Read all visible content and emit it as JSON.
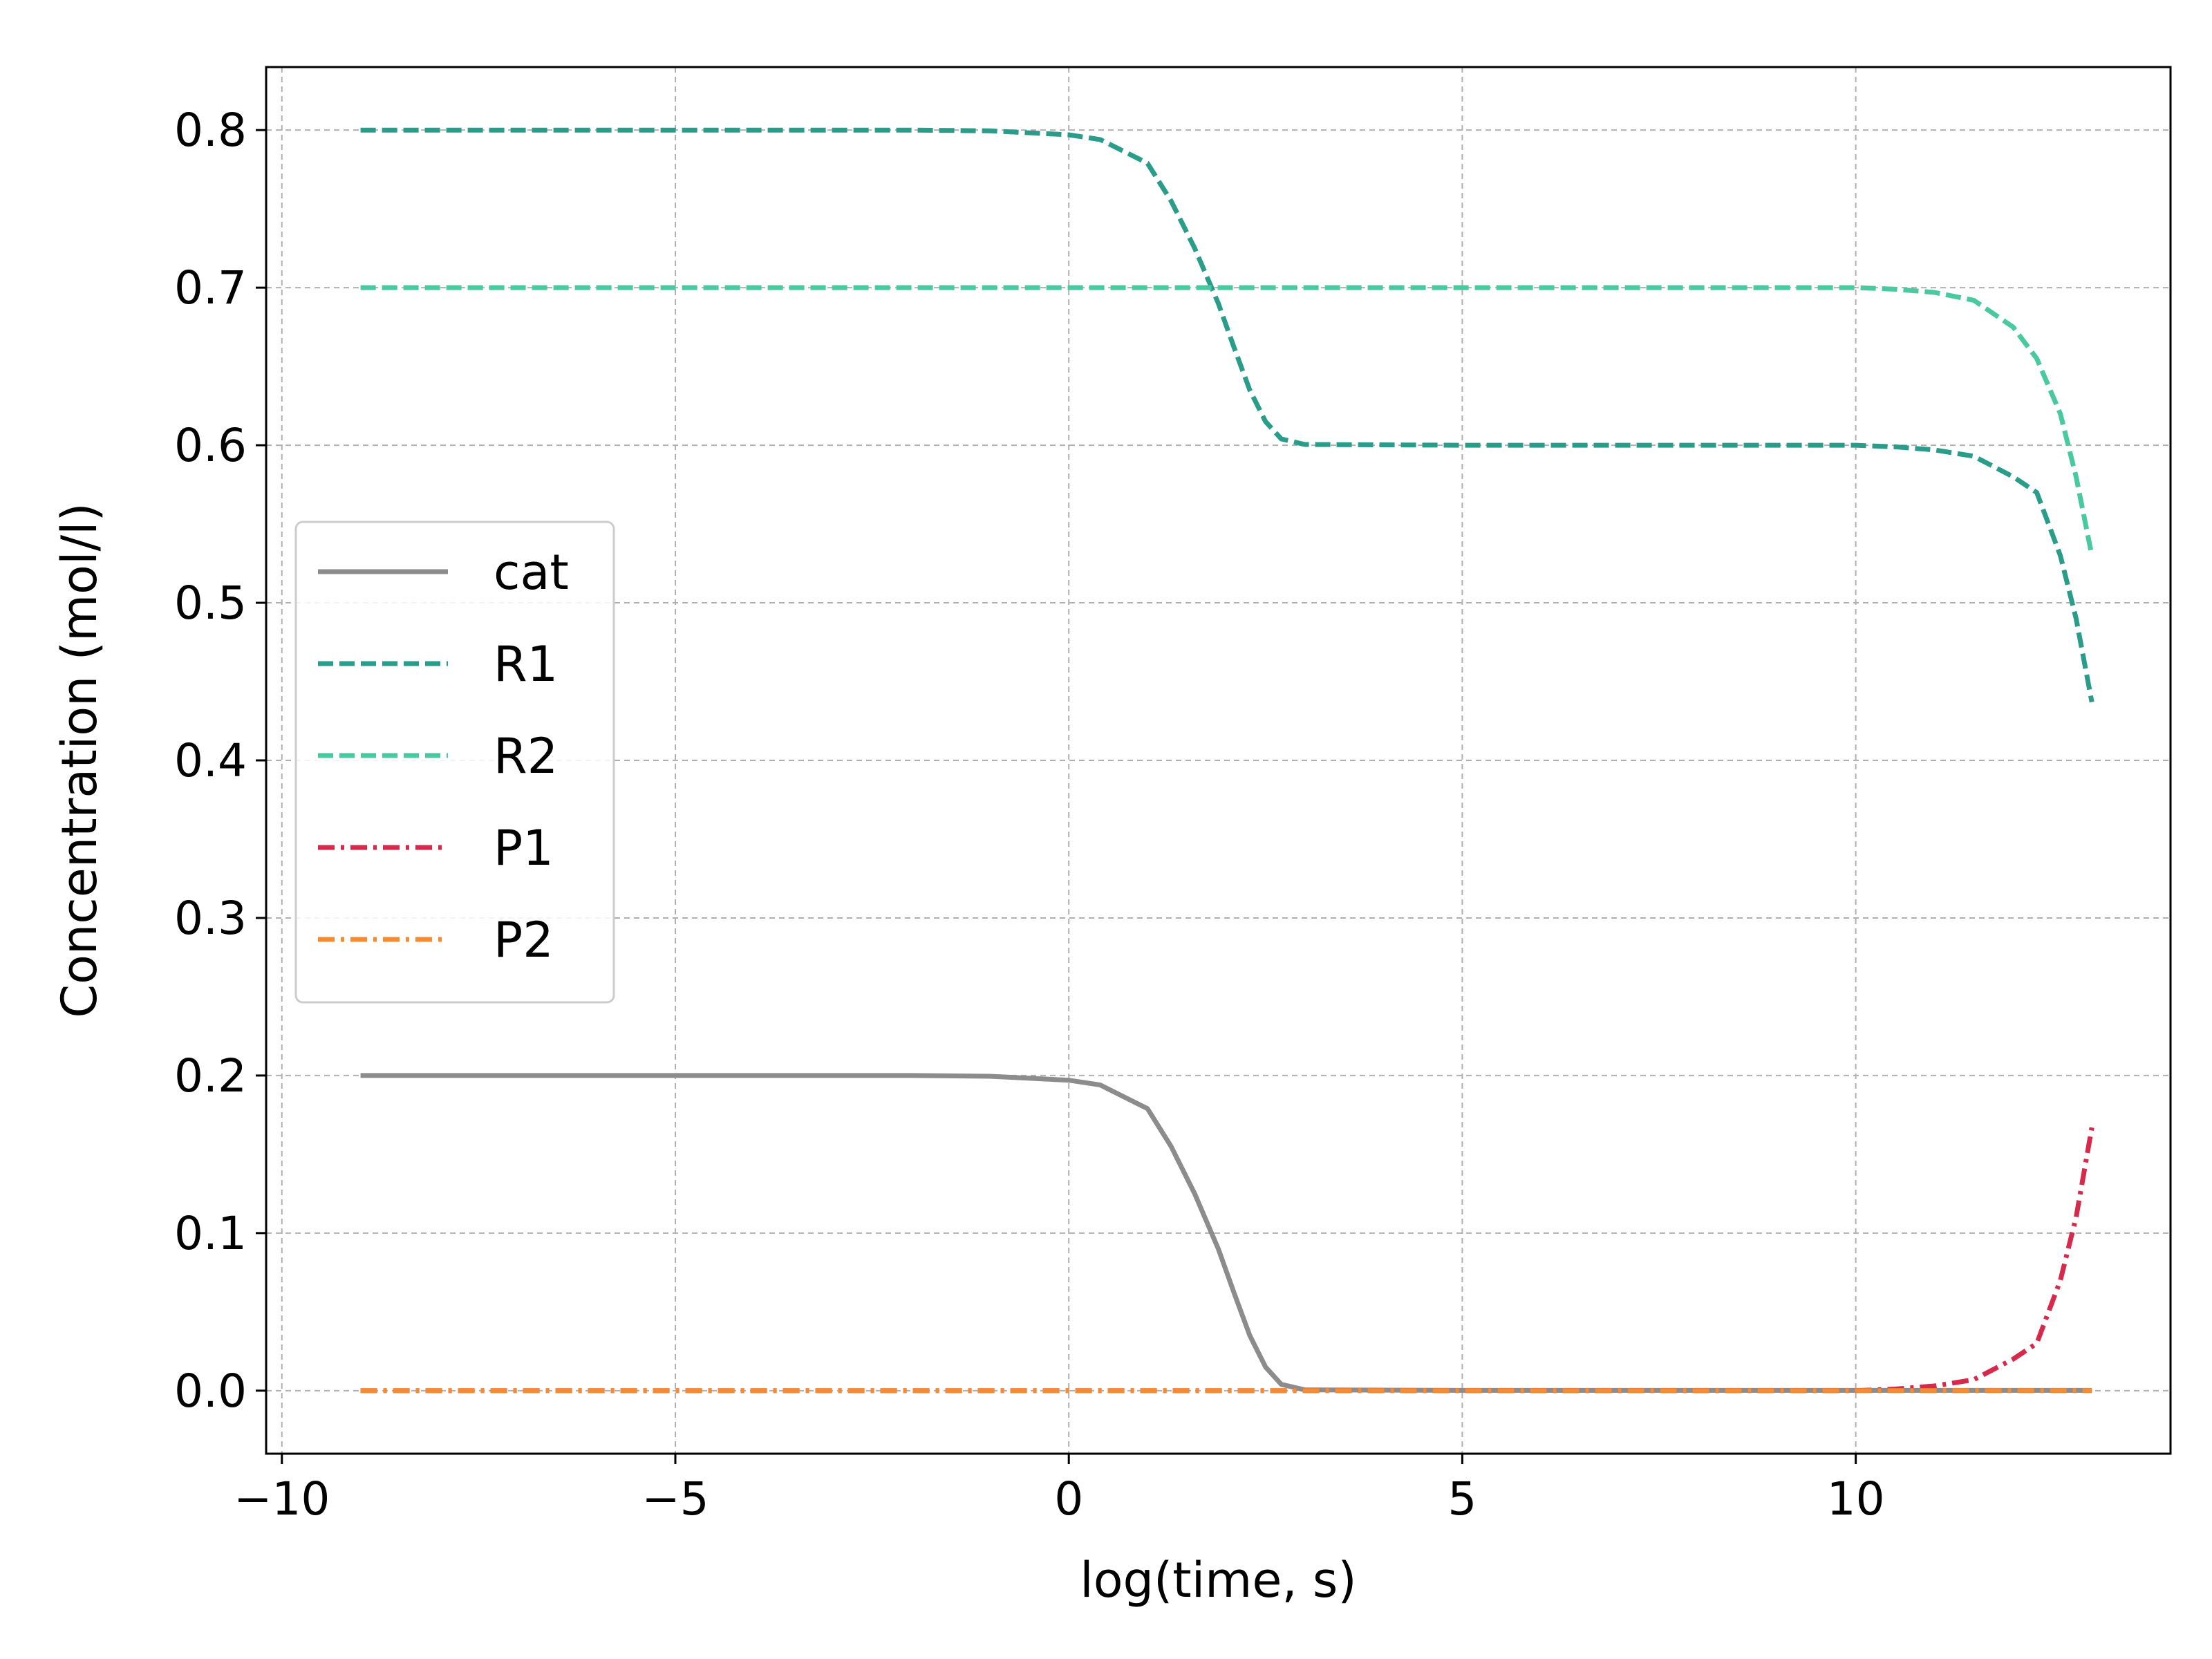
{
  "chart_data": {
    "type": "line",
    "title": "",
    "xlabel": "log(time, s)",
    "ylabel": "Concentration (mol/l)",
    "xlim": [
      -10.2,
      14
    ],
    "ylim": [
      -0.04,
      0.84
    ],
    "xticks": [
      -10,
      -5,
      0,
      5,
      10
    ],
    "xtick_labels": [
      "−10",
      "−5",
      "0",
      "5",
      "10"
    ],
    "yticks": [
      0.0,
      0.1,
      0.2,
      0.3,
      0.4,
      0.5,
      0.6,
      0.7,
      0.8
    ],
    "ytick_labels": [
      "0.0",
      "0.1",
      "0.2",
      "0.3",
      "0.4",
      "0.5",
      "0.6",
      "0.7",
      "0.8"
    ],
    "grid": true,
    "legend_position": "center-left",
    "series": [
      {
        "name": "cat",
        "color": "#8c8c8c",
        "style": "solid",
        "x": [
          -9,
          -5,
          -2,
          -1,
          0,
          0.4,
          1.0,
          1.3,
          1.6,
          1.9,
          2.1,
          2.3,
          2.5,
          2.7,
          3.0,
          5,
          8,
          10,
          11,
          12,
          13
        ],
        "y": [
          0.2,
          0.2,
          0.2,
          0.1995,
          0.197,
          0.194,
          0.179,
          0.155,
          0.125,
          0.09,
          0.062,
          0.035,
          0.015,
          0.004,
          0.0005,
          0.0002,
          0.0002,
          0.0002,
          0.0002,
          0.0002,
          0.0002
        ]
      },
      {
        "name": "R1",
        "color": "#2a9d8a",
        "style": "dashed",
        "x": [
          -9,
          -5,
          -2,
          -1,
          0,
          0.4,
          1.0,
          1.3,
          1.6,
          1.9,
          2.1,
          2.3,
          2.5,
          2.7,
          3.0,
          5,
          8,
          10,
          10.5,
          11.0,
          11.5,
          12.0,
          12.3,
          12.6,
          12.8,
          13.0
        ],
        "y": [
          0.8,
          0.8,
          0.8,
          0.7995,
          0.797,
          0.794,
          0.779,
          0.755,
          0.725,
          0.69,
          0.662,
          0.635,
          0.615,
          0.604,
          0.6005,
          0.6,
          0.6,
          0.6,
          0.599,
          0.597,
          0.593,
          0.58,
          0.57,
          0.53,
          0.49,
          0.437
        ]
      },
      {
        "name": "R2",
        "color": "#48c9a0",
        "style": "dashed",
        "x": [
          -9,
          -5,
          0,
          5,
          8,
          10,
          10.5,
          11.0,
          11.5,
          12.0,
          12.3,
          12.6,
          12.8,
          13.0
        ],
        "y": [
          0.7,
          0.7,
          0.7,
          0.7,
          0.7,
          0.7,
          0.699,
          0.697,
          0.692,
          0.675,
          0.655,
          0.62,
          0.58,
          0.53
        ]
      },
      {
        "name": "P1",
        "color": "#d6294b",
        "style": "dashdot",
        "x": [
          -9,
          -5,
          0,
          5,
          8,
          10,
          10.5,
          11.0,
          11.5,
          12.0,
          12.3,
          12.6,
          12.8,
          13.0
        ],
        "y": [
          0.0,
          0.0,
          0.0,
          0.0,
          0.0,
          0.0,
          0.001,
          0.003,
          0.007,
          0.02,
          0.03,
          0.07,
          0.11,
          0.167
        ]
      },
      {
        "name": "P2",
        "color": "#f58c33",
        "style": "dashdot",
        "x": [
          -9,
          -5,
          0,
          5,
          10,
          13
        ],
        "y": [
          0.0,
          0.0,
          0.0,
          0.0,
          0.0,
          0.0
        ]
      }
    ]
  }
}
